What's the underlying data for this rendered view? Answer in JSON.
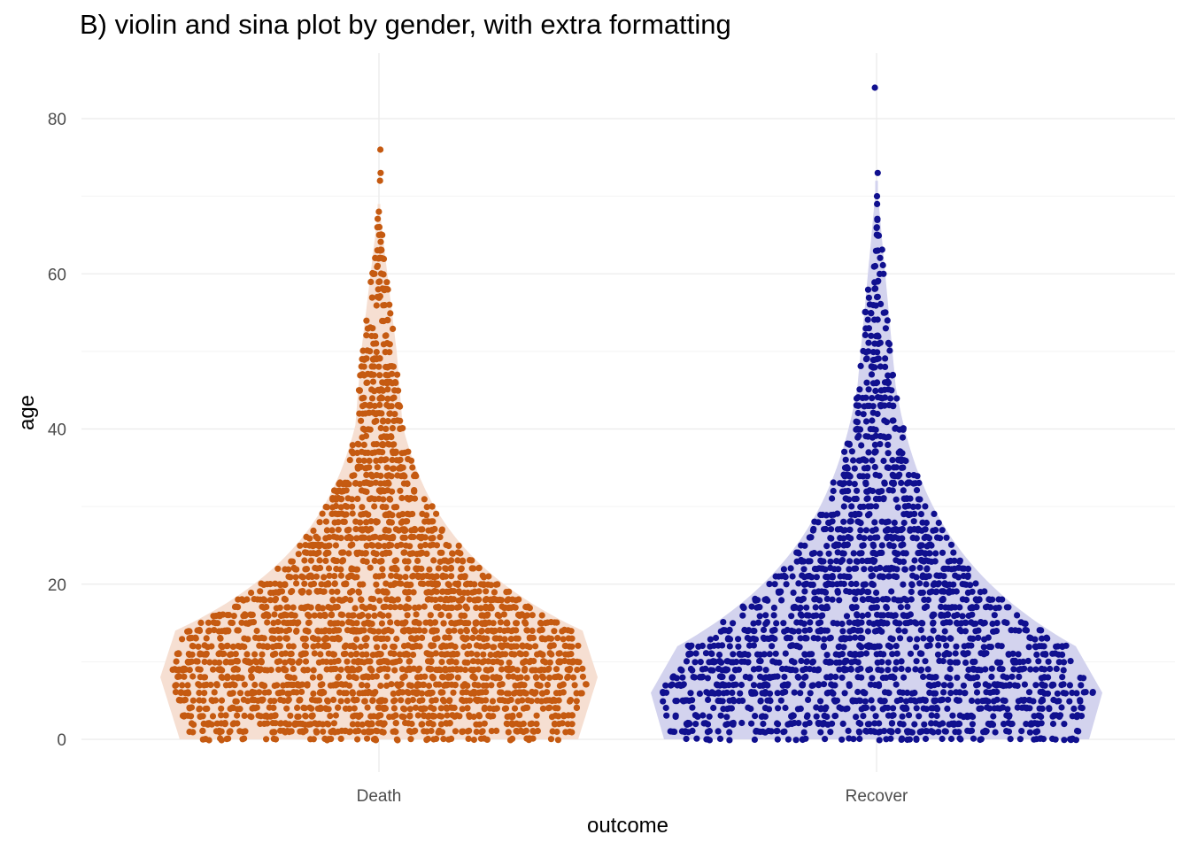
{
  "chart_data": {
    "type": "violin",
    "title": "B) violin and sina plot by gender, with extra formatting",
    "xlabel": "outcome",
    "ylabel": "age",
    "ylim": [
      -4,
      88
    ],
    "yticks": [
      0,
      20,
      40,
      60,
      80
    ],
    "y_minor_ticks": [
      10,
      30,
      50,
      70
    ],
    "grid": true,
    "legend": "none",
    "categories": [
      "Death",
      "Recover"
    ],
    "series": [
      {
        "category": "Death",
        "point_color": "#C55A11",
        "violin_fill": "#F6DFD2",
        "points_approx": 2600,
        "age_range": [
          0,
          76
        ],
        "max_density_age": 8,
        "outliers": [
          76,
          73,
          72,
          68,
          66,
          65,
          63,
          62,
          59,
          58
        ]
      },
      {
        "category": "Recover",
        "point_color": "#10108F",
        "violin_fill": "#D3D3EE",
        "points_approx": 2000,
        "age_range": [
          0,
          84
        ],
        "max_density_age": 6,
        "outliers": [
          84,
          73,
          70,
          69,
          66,
          65,
          63,
          61,
          59,
          57
        ]
      }
    ]
  }
}
